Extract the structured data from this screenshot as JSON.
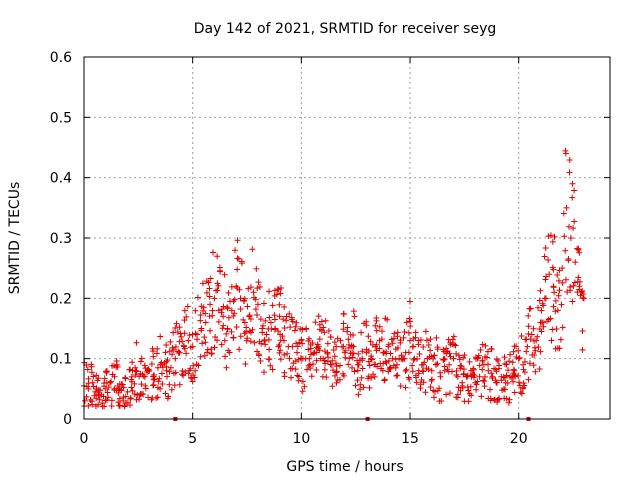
{
  "chart_data": {
    "type": "scatter",
    "title": "Day 142 of 2021, SRMTID for receiver seyg",
    "xlabel": "GPS time / hours",
    "ylabel": "SRMTID / TECUs",
    "xlim": [
      0,
      24.2
    ],
    "ylim": [
      0,
      0.6
    ],
    "xticks": [
      0,
      5,
      10,
      15,
      20
    ],
    "yticks": [
      0,
      0.1,
      0.2,
      0.3,
      0.4,
      0.5,
      0.6
    ],
    "xtick_labels": [
      "0",
      "5",
      "10",
      "15",
      "20"
    ],
    "ytick_labels": [
      "0",
      "0.1",
      "0.2",
      "0.3",
      "0.4",
      "0.5",
      "0.6"
    ],
    "grid": true,
    "marker": "+",
    "color": "#e00000",
    "gap_markers_x": [
      4.2,
      13.05,
      20.45
    ],
    "series": [
      {
        "name": "SRMTID",
        "x": [
          0.0,
          0.2,
          0.4,
          0.6,
          0.8,
          1.0,
          1.2,
          1.4,
          1.6,
          1.8,
          2.0,
          2.2,
          2.4,
          2.6,
          2.8,
          3.0,
          3.2,
          3.4,
          3.6,
          3.8,
          4.0,
          4.2,
          4.4,
          4.6,
          4.8,
          5.0,
          5.2,
          5.4,
          5.6,
          5.8,
          6.0,
          6.2,
          6.4,
          6.6,
          6.8,
          7.0,
          7.2,
          7.4,
          7.6,
          7.8,
          8.0,
          8.2,
          8.4,
          8.6,
          8.8,
          9.0,
          9.2,
          9.4,
          9.6,
          9.8,
          10.0,
          10.2,
          10.4,
          10.6,
          10.8,
          11.0,
          11.2,
          11.4,
          11.6,
          11.8,
          12.0,
          12.2,
          12.4,
          12.6,
          12.8,
          13.0,
          13.2,
          13.4,
          13.6,
          13.8,
          14.0,
          14.2,
          14.4,
          14.6,
          14.8,
          15.0,
          15.2,
          15.4,
          15.6,
          15.8,
          16.0,
          16.2,
          16.4,
          16.6,
          16.8,
          17.0,
          17.2,
          17.4,
          17.6,
          17.8,
          18.0,
          18.2,
          18.4,
          18.6,
          18.8,
          19.0,
          19.2,
          19.4,
          19.6,
          19.8,
          20.0,
          20.2,
          20.4,
          20.6,
          20.8,
          21.0,
          21.2,
          21.4,
          21.6,
          21.8,
          22.0,
          22.2,
          22.4,
          22.6,
          22.8,
          23.0
        ],
        "y": [
          0.055,
          0.05,
          0.06,
          0.045,
          0.04,
          0.05,
          0.06,
          0.07,
          0.05,
          0.03,
          0.045,
          0.07,
          0.08,
          0.075,
          0.07,
          0.08,
          0.07,
          0.085,
          0.09,
          0.08,
          0.085,
          0.1,
          0.11,
          0.12,
          0.13,
          0.12,
          0.14,
          0.15,
          0.16,
          0.19,
          0.2,
          0.18,
          0.17,
          0.15,
          0.18,
          0.22,
          0.2,
          0.16,
          0.17,
          0.21,
          0.19,
          0.15,
          0.14,
          0.16,
          0.15,
          0.17,
          0.13,
          0.12,
          0.12,
          0.11,
          0.1,
          0.1,
          0.09,
          0.11,
          0.12,
          0.1,
          0.11,
          0.09,
          0.12,
          0.13,
          0.11,
          0.1,
          0.12,
          0.09,
          0.1,
          0.11,
          0.1,
          0.12,
          0.13,
          0.11,
          0.12,
          0.1,
          0.09,
          0.1,
          0.11,
          0.13,
          0.1,
          0.08,
          0.09,
          0.1,
          0.08,
          0.09,
          0.07,
          0.08,
          0.09,
          0.1,
          0.07,
          0.06,
          0.07,
          0.08,
          0.06,
          0.07,
          0.09,
          0.08,
          0.07,
          0.06,
          0.07,
          0.06,
          0.07,
          0.08,
          0.1,
          0.09,
          0.12,
          0.14,
          0.13,
          0.16,
          0.2,
          0.24,
          0.22,
          0.18,
          0.25,
          0.35,
          0.3,
          0.26,
          0.22,
          0.2
        ]
      }
    ]
  }
}
